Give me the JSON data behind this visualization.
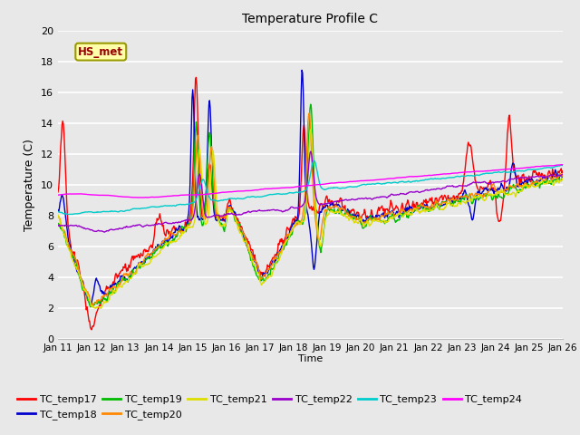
{
  "title": "Temperature Profile C",
  "xlabel": "Time",
  "ylabel": "Temperature (C)",
  "ylim": [
    0,
    20
  ],
  "annotation_text": "HS_met",
  "background_color": "#e8e8e8",
  "series_colors": {
    "TC_temp17": "#ff0000",
    "TC_temp18": "#0000cc",
    "TC_temp19": "#00bb00",
    "TC_temp20": "#ff8800",
    "TC_temp21": "#dddd00",
    "TC_temp22": "#9900cc",
    "TC_temp23": "#00cccc",
    "TC_temp24": "#ff00ff"
  },
  "x_tick_labels": [
    "Jan 11",
    "Jan 12",
    "Jan 13",
    "Jan 14",
    "Jan 15",
    "Jan 16",
    "Jan 17",
    "Jan 18",
    "Jan 19",
    "Jan 20",
    "Jan 21",
    "Jan 22",
    "Jan 23",
    "Jan 24",
    "Jan 25",
    "Jan 26"
  ],
  "n_points": 750
}
